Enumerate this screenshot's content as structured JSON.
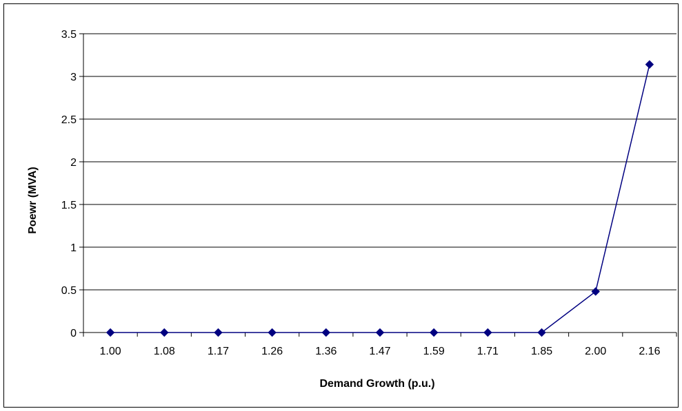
{
  "chart_data": {
    "type": "line",
    "title": "",
    "xlabel": "Demand Growth (p.u.)",
    "ylabel": "Poewr (MVA)",
    "categories": [
      "1.00",
      "1.08",
      "1.17",
      "1.26",
      "1.36",
      "1.47",
      "1.59",
      "1.71",
      "1.85",
      "2.00",
      "2.16"
    ],
    "series": [
      {
        "values": [
          0,
          0,
          0,
          0,
          0,
          0,
          0,
          0,
          0,
          0.48,
          3.14
        ],
        "color": "#000080",
        "marker": "diamond"
      }
    ],
    "ylim": [
      0,
      3.5
    ],
    "yticks": [
      "0",
      "0.5",
      "1",
      "1.5",
      "2",
      "2.5",
      "3",
      "3.5"
    ],
    "grid": "horizontal",
    "legend": "none"
  }
}
